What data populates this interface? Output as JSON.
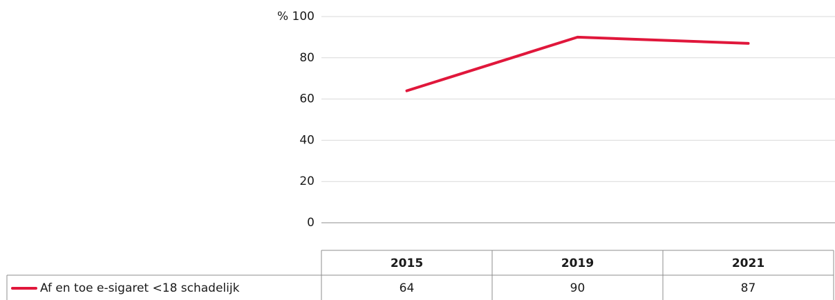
{
  "chart_data": {
    "type": "line",
    "categories": [
      "2015",
      "2019",
      "2021"
    ],
    "series": [
      {
        "name": "Af en toe e-sigaret <18 schadelijk",
        "color": "#e0173b",
        "values": [
          64,
          90,
          87
        ]
      }
    ],
    "ylim": [
      0,
      100
    ],
    "yticks": [
      0,
      20,
      40,
      60,
      80,
      {
        "value": 100,
        "label": "% 100"
      }
    ],
    "grid": true
  }
}
